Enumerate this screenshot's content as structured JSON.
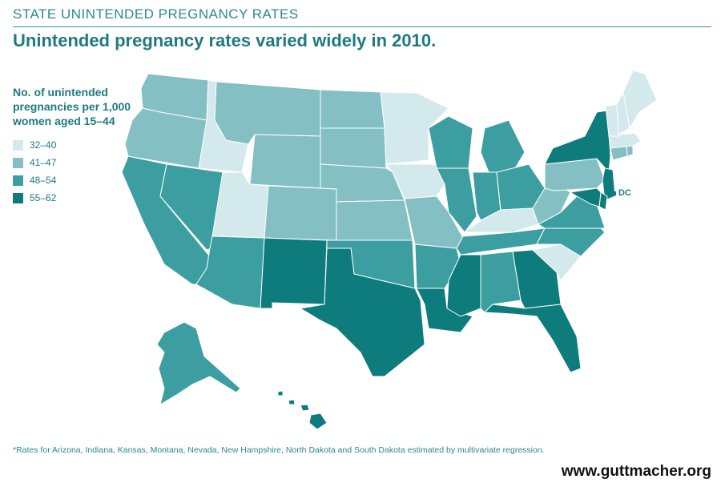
{
  "kicker": "STATE UNINTENDED PREGNANCY RATES",
  "headline": "Unintended pregnancy rates varied widely in 2010.",
  "legend": {
    "title": "No. of unintended pregnancies per 1,000 women aged 15–44",
    "items": [
      {
        "label": "32–40",
        "color": "#d3e9ec"
      },
      {
        "label": "41–47",
        "color": "#84bfc3"
      },
      {
        "label": "48–54",
        "color": "#3d9ea2"
      },
      {
        "label": "55–62",
        "color": "#0e7b7c"
      }
    ]
  },
  "map": {
    "dc_label": "DC",
    "dc_category": "55–62",
    "states": [
      {
        "code": "WA",
        "category": "41–47"
      },
      {
        "code": "OR",
        "category": "41–47"
      },
      {
        "code": "CA",
        "category": "48–54"
      },
      {
        "code": "NV",
        "category": "48–54"
      },
      {
        "code": "ID",
        "category": "32–40"
      },
      {
        "code": "MT",
        "category": "41–47"
      },
      {
        "code": "WY",
        "category": "41–47"
      },
      {
        "code": "UT",
        "category": "32–40"
      },
      {
        "code": "AZ",
        "category": "48–54"
      },
      {
        "code": "CO",
        "category": "41–47"
      },
      {
        "code": "NM",
        "category": "55–62"
      },
      {
        "code": "ND",
        "category": "41–47"
      },
      {
        "code": "SD",
        "category": "41–47"
      },
      {
        "code": "NE",
        "category": "41–47"
      },
      {
        "code": "KS",
        "category": "41–47"
      },
      {
        "code": "OK",
        "category": "48–54"
      },
      {
        "code": "TX",
        "category": "55–62"
      },
      {
        "code": "MN",
        "category": "32–40"
      },
      {
        "code": "IA",
        "category": "32–40"
      },
      {
        "code": "MO",
        "category": "41–47"
      },
      {
        "code": "AR",
        "category": "48–54"
      },
      {
        "code": "LA",
        "category": "55–62"
      },
      {
        "code": "WI",
        "category": "48–54"
      },
      {
        "code": "IL",
        "category": "48–54"
      },
      {
        "code": "MI",
        "category": "48–54"
      },
      {
        "code": "IN",
        "category": "48–54"
      },
      {
        "code": "OH",
        "category": "48–54"
      },
      {
        "code": "KY",
        "category": "32–40"
      },
      {
        "code": "TN",
        "category": "48–54"
      },
      {
        "code": "MS",
        "category": "55–62"
      },
      {
        "code": "AL",
        "category": "48–54"
      },
      {
        "code": "GA",
        "category": "55–62"
      },
      {
        "code": "FL",
        "category": "55–62"
      },
      {
        "code": "SC",
        "category": "32–40"
      },
      {
        "code": "NC",
        "category": "48–54"
      },
      {
        "code": "VA",
        "category": "48–54"
      },
      {
        "code": "WV",
        "category": "41–47"
      },
      {
        "code": "PA",
        "category": "41–47"
      },
      {
        "code": "NY",
        "category": "55–62"
      },
      {
        "code": "NJ",
        "category": "55–62"
      },
      {
        "code": "DE",
        "category": "55–62"
      },
      {
        "code": "MD",
        "category": "55–62"
      },
      {
        "code": "CT",
        "category": "41–47"
      },
      {
        "code": "RI",
        "category": "41–47"
      },
      {
        "code": "MA",
        "category": "32–40"
      },
      {
        "code": "VT",
        "category": "32–40"
      },
      {
        "code": "NH",
        "category": "32–40"
      },
      {
        "code": "ME",
        "category": "32–40"
      },
      {
        "code": "AK",
        "category": "48–54"
      },
      {
        "code": "HI",
        "category": "55–62"
      }
    ]
  },
  "footnote": "*Rates for Arizona, Indiana, Kansas, Montana, Nevada, New Hampshire, North Dakota and South Dakota estimated by multivariate regression.",
  "site": "www.guttmacher.org"
}
